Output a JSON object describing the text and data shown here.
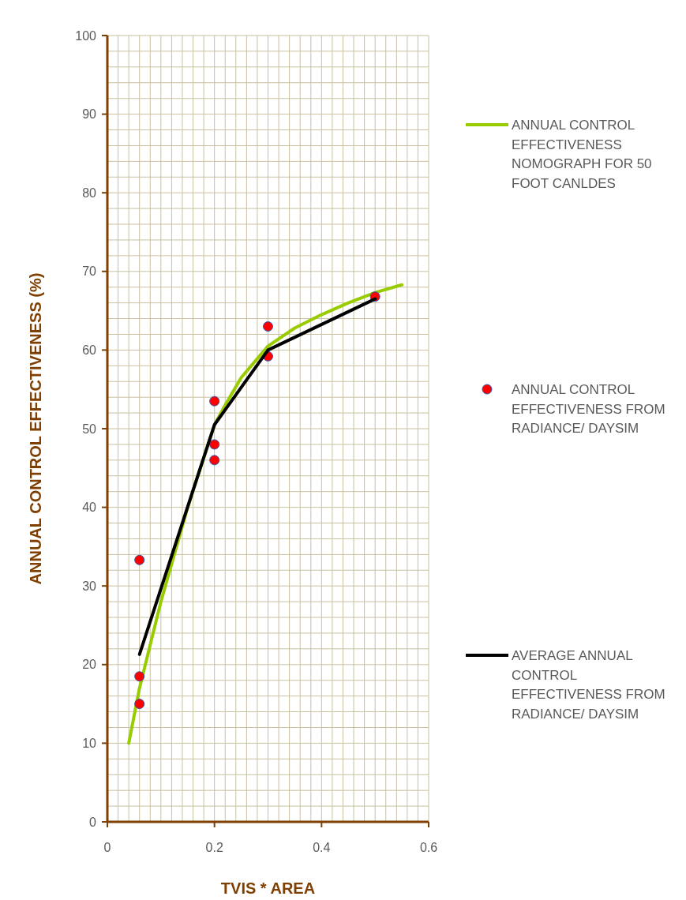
{
  "chart_data": {
    "type": "line",
    "xlabel": "TVIS * AREA",
    "ylabel": "ANNUAL CONTROL EFFECTIVENESS (%)",
    "xlim": [
      0,
      0.6
    ],
    "xticks": [
      0,
      0.2,
      0.4,
      0.6
    ],
    "ylim": [
      0,
      100
    ],
    "yticks": [
      0,
      {
        "value": 2,
        "label": null
      },
      {
        "value": 4,
        "label": null
      },
      {
        "value": 6,
        "label": null
      },
      {
        "value": 8,
        "label": null
      },
      10,
      {
        "value": 12,
        "label": null
      },
      {
        "value": 14,
        "label": null
      },
      {
        "value": 16,
        "label": null
      },
      {
        "value": 18,
        "label": null
      },
      20,
      {
        "value": 22,
        "label": null
      },
      {
        "value": 24,
        "label": null
      },
      {
        "value": 26,
        "label": null
      },
      {
        "value": 28,
        "label": null
      },
      30,
      {
        "value": 32,
        "label": null
      },
      {
        "value": 34,
        "label": null
      },
      {
        "value": 36,
        "label": null
      },
      {
        "value": 38,
        "label": null
      },
      40,
      {
        "value": 42,
        "label": null
      },
      {
        "value": 44,
        "label": null
      },
      {
        "value": 46,
        "label": null
      },
      {
        "value": 48,
        "label": null
      },
      50,
      {
        "value": 52,
        "label": null
      },
      {
        "value": 54,
        "label": null
      },
      {
        "value": 56,
        "label": null
      },
      {
        "value": 58,
        "label": null
      },
      60,
      {
        "value": 62,
        "label": null
      },
      {
        "value": 64,
        "label": null
      },
      {
        "value": 66,
        "label": null
      },
      {
        "value": 68,
        "label": null
      },
      70,
      {
        "value": 72,
        "label": null
      },
      {
        "value": 74,
        "label": null
      },
      {
        "value": 76,
        "label": null
      },
      {
        "value": 78,
        "label": null
      },
      80,
      {
        "value": 82,
        "label": null
      },
      {
        "value": 84,
        "label": null
      },
      {
        "value": 86,
        "label": null
      },
      {
        "value": 88,
        "label": null
      },
      90,
      {
        "value": 92,
        "label": null
      },
      {
        "value": 94,
        "label": null
      },
      {
        "value": 96,
        "label": null
      },
      {
        "value": 98,
        "label": null
      },
      100
    ],
    "grid": true,
    "legend": "right",
    "series": [
      {
        "name": "ANNUAL CONTROL EFFECTIVENESS NOMOGRAPH FOR 50 FOOT CANLDES",
        "color": "#99cc00",
        "marker": "none",
        "line_style": "solid",
        "x": [
          0.04,
          0.06,
          0.1,
          0.15,
          0.2,
          0.22,
          0.25,
          0.3,
          0.35,
          0.4,
          0.45,
          0.5,
          0.55
        ],
        "values": [
          10,
          17,
          28,
          40,
          50.5,
          53,
          56.5,
          60.5,
          62.8,
          64.5,
          66,
          67.3,
          68.3
        ]
      },
      {
        "name": "ANNUAL CONTROL EFFECTIVENESS FROM RADIANCE/ DAYSIM",
        "type": "scatter",
        "color": "#ff0000",
        "marker": "circle",
        "x": [
          0.06,
          0.06,
          0.06,
          0.2,
          0.2,
          0.2,
          0.3,
          0.3,
          0.5
        ],
        "values": [
          33.3,
          18.5,
          15,
          53.5,
          48,
          46,
          63,
          59.2,
          66.8
        ]
      },
      {
        "name": "AVERAGE ANNUAL CONTROL EFFECTIVENESS FROM RADIANCE/ DAYSIM",
        "color": "#000000",
        "marker": "none",
        "line_style": "solid",
        "x": [
          0.06,
          0.2,
          0.3,
          0.5
        ],
        "values": [
          21.3,
          50.5,
          60,
          66.5
        ]
      }
    ]
  }
}
